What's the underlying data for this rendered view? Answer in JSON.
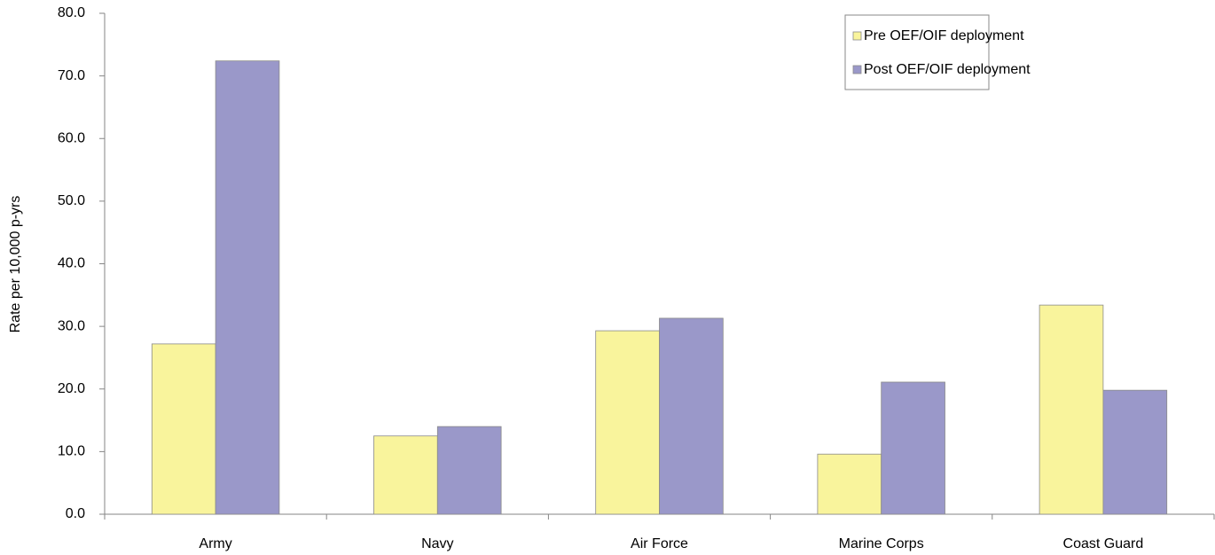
{
  "chart_data": {
    "type": "bar",
    "y_label": "Rate per 10,000 p-yrs",
    "categories": [
      "Army",
      "Navy",
      "Air Force",
      "Marine Corps",
      "Coast Guard"
    ],
    "series": [
      {
        "name": "Pre OEF/OIF deployment",
        "color": "#f9f49c",
        "values": [
          27.2,
          12.5,
          29.3,
          9.6,
          33.4
        ]
      },
      {
        "name": "Post OEF/OIF deployment",
        "color": "#9a98c9",
        "values": [
          72.4,
          14.0,
          31.3,
          21.1,
          19.8
        ]
      }
    ],
    "ylim": [
      0,
      80
    ],
    "yticks": [
      {
        "value": 0,
        "label": "0.0"
      },
      {
        "value": 10,
        "label": "10.0"
      },
      {
        "value": 20,
        "label": "20.0"
      },
      {
        "value": 30,
        "label": "30.0"
      },
      {
        "value": 40,
        "label": "40.0"
      },
      {
        "value": 50,
        "label": "50.0"
      },
      {
        "value": 60,
        "label": "60.0"
      },
      {
        "value": 70,
        "label": "70.0"
      },
      {
        "value": 80,
        "label": "80.0"
      }
    ],
    "grid": false,
    "legend": "upper right"
  }
}
